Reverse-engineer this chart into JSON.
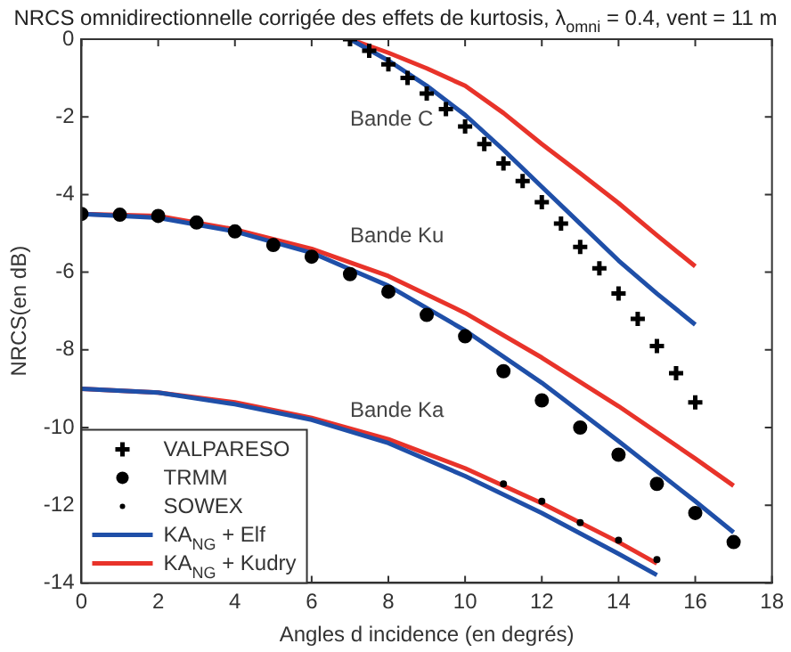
{
  "chart_data": {
    "type": "line",
    "title": "NRCS omnidirectionnelle corrigée des effets de kurtosis, λ$_{omni}$ = 0.4, vent = 11 m",
    "xlabel": "Angles d incidence (en degrés)",
    "ylabel": "NRCS(en dB)",
    "xlim": [
      0,
      18
    ],
    "xticks": [
      0,
      2,
      4,
      6,
      8,
      10,
      12,
      14,
      16,
      18
    ],
    "ylim": [
      -14,
      0
    ],
    "yticks": [
      -14,
      -12,
      -10,
      -8,
      -6,
      -4,
      -2,
      0
    ],
    "grid": false,
    "legend": "bottom left",
    "annotations": [
      "Bande C",
      "Bande Ku",
      "Bande Ka"
    ],
    "series": [
      {
        "name": "VALPARESO",
        "type": "scatter",
        "marker": "cross",
        "color": "#000000",
        "x": [
          7,
          7.5,
          8,
          8.5,
          9,
          9.5,
          10,
          10.5,
          11,
          11.5,
          12,
          12.5,
          13,
          13.5,
          14,
          14.5,
          15,
          15.5,
          16
        ],
        "values": [
          0,
          -0.3,
          -0.65,
          -1,
          -1.4,
          -1.8,
          -2.25,
          -2.7,
          -3.2,
          -3.65,
          -4.2,
          -4.75,
          -5.35,
          -5.9,
          -6.55,
          -7.2,
          -7.9,
          -8.6,
          -9.35
        ]
      },
      {
        "name": "TRMM",
        "type": "scatter",
        "marker": "circle",
        "color": "#000000",
        "x": [
          0,
          1,
          2,
          3,
          4,
          5,
          6,
          7,
          8,
          9,
          10,
          11,
          12,
          13,
          14,
          15,
          16,
          17
        ],
        "values": [
          -4.5,
          -4.52,
          -4.55,
          -4.72,
          -4.95,
          -5.3,
          -5.6,
          -6.05,
          -6.5,
          -7.1,
          -7.65,
          -8.55,
          -9.3,
          -10,
          -10.7,
          -11.45,
          -12.2,
          -12.95
        ]
      },
      {
        "name": "SOWEX",
        "type": "scatter",
        "marker": "circle",
        "color": "#000000",
        "x": [
          11,
          12,
          13,
          14,
          15
        ],
        "values": [
          -11.45,
          -11.9,
          -12.45,
          -12.9,
          -13.4
        ]
      },
      {
        "name": "KA$_{NG}$ + Elf",
        "marker": "none",
        "color": "#1f4fa8",
        "x": [
          7,
          8,
          9,
          10,
          11,
          12,
          13,
          14,
          15,
          16
        ],
        "values": [
          0,
          -0.55,
          -1.2,
          -1.95,
          -2.85,
          -3.8,
          -4.75,
          -5.7,
          -6.55,
          -7.35
        ]
      },
      {
        "name": "KA$_{NG}$ + Kudry",
        "marker": "none",
        "color": "#e8332a",
        "x": [
          7,
          8,
          9,
          10,
          11,
          12,
          13,
          14,
          15,
          16
        ],
        "values": [
          0,
          -0.35,
          -0.75,
          -1.2,
          -1.9,
          -2.7,
          -3.45,
          -4.22,
          -5.05,
          -5.85
        ]
      },
      {
        "marker": "none",
        "color": "#1f4fa8",
        "x": [
          0,
          2,
          4,
          6,
          8,
          10,
          12,
          14,
          16,
          17
        ],
        "values": [
          -4.5,
          -4.6,
          -4.95,
          -5.5,
          -6.35,
          -7.5,
          -8.85,
          -10.35,
          -11.9,
          -12.7
        ]
      },
      {
        "marker": "none",
        "color": "#e8332a",
        "x": [
          0,
          2,
          4,
          6,
          8,
          10,
          12,
          14,
          16,
          17
        ],
        "values": [
          -4.5,
          -4.55,
          -4.9,
          -5.4,
          -6.1,
          -7.05,
          -8.2,
          -9.45,
          -10.8,
          -11.5
        ]
      },
      {
        "marker": "none",
        "color": "#1f4fa8",
        "x": [
          0,
          2,
          4,
          6,
          8,
          10,
          12,
          14,
          15
        ],
        "values": [
          -9,
          -9.1,
          -9.4,
          -9.8,
          -10.4,
          -11.25,
          -12.2,
          -13.25,
          -13.8
        ]
      },
      {
        "marker": "none",
        "color": "#e8332a",
        "x": [
          0,
          2,
          4,
          6,
          8,
          10,
          12,
          14,
          15
        ],
        "values": [
          -9,
          -9.1,
          -9.35,
          -9.75,
          -10.3,
          -11.05,
          -11.95,
          -12.95,
          -13.5
        ]
      }
    ]
  }
}
